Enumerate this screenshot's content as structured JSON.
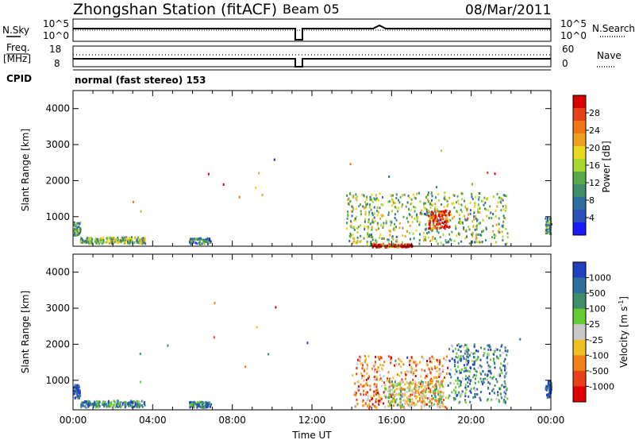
{
  "header": {
    "station_title": "Zhongshan Station (fitACF)",
    "beam": "Beam 05",
    "date": "08/Mar/2011"
  },
  "status_panels": {
    "nsky_label": "N.Sky",
    "nsearch_label": "N.Search",
    "freq_label": "Freq.",
    "freq_unit": "[MHz]",
    "nave_label": "Nave",
    "cpid_label": "CPID",
    "cpid_text": "normal (fast stereo) 153",
    "noise_left_top": "10^5",
    "noise_left_bottom": "10^0",
    "noise_right_top": "10^5",
    "noise_right_bottom": "10^0",
    "freq_top": "18",
    "freq_bottom": "8",
    "nave_top": "60",
    "nave_bottom": "0"
  },
  "chart_data": [
    {
      "type": "heatmap",
      "panel": "power",
      "ylabel": "Slant Range [km]",
      "colorbar_label": "Power [dB]",
      "ylim": [
        180,
        4500
      ],
      "yticks": [
        1000,
        2000,
        3000,
        4000
      ],
      "xlim": [
        0,
        24
      ],
      "colorbar_ticks": [
        "4",
        "8",
        "12",
        "16",
        "20",
        "24",
        "28"
      ],
      "colorscale": [
        "#1a1aff",
        "#2a52b8",
        "#2f6fa0",
        "#3f8e6a",
        "#5aa84a",
        "#a8d830",
        "#e8d820",
        "#f0a020",
        "#f07818",
        "#e84018",
        "#d80000"
      ],
      "patches": [
        {
          "t0": 0.0,
          "t1": 0.35,
          "r0": 500,
          "r1": 900,
          "level": 0.35
        },
        {
          "t0": 0.35,
          "t1": 3.6,
          "r0": 280,
          "r1": 460,
          "level": 0.45
        },
        {
          "t0": 5.8,
          "t1": 6.9,
          "r0": 270,
          "r1": 430,
          "level": 0.3
        },
        {
          "t0": 13.7,
          "t1": 21.8,
          "r0": 250,
          "r1": 1700,
          "level": 0.45
        },
        {
          "t0": 17.8,
          "t1": 18.9,
          "r0": 700,
          "r1": 1200,
          "level": 0.9
        },
        {
          "t0": 15.0,
          "t1": 17.0,
          "r0": 180,
          "r1": 260,
          "level": 0.85
        },
        {
          "t0": 23.7,
          "t1": 24.0,
          "r0": 550,
          "r1": 1000,
          "level": 0.35
        }
      ]
    },
    {
      "type": "heatmap",
      "panel": "velocity",
      "ylabel": "Slant Range [km]",
      "colorbar_label": "Velocity [m s",
      "colorbar_label_sup": "-1",
      "colorbar_label_end": "]",
      "ylim": [
        180,
        4500
      ],
      "yticks": [
        1000,
        2000,
        3000,
        4000
      ],
      "xlim": [
        0,
        24
      ],
      "xticks": [
        "00:00",
        "04:00",
        "08:00",
        "12:00",
        "16:00",
        "20:00",
        "00:00"
      ],
      "xlabel": "Time UT",
      "colorbar_ticks": [
        "1000",
        "500",
        "100",
        "25",
        "-25",
        "-100",
        "-500",
        "-1000"
      ],
      "colorscale": [
        "#2040c0",
        "#2f6fa0",
        "#3f8e6a",
        "#66cc33",
        "#c8c8c8",
        "#f0c020",
        "#f08018",
        "#e84018",
        "#e00000"
      ],
      "patches": [
        {
          "t0": 0.0,
          "t1": 0.35,
          "r0": 520,
          "r1": 900,
          "level": 0.1
        },
        {
          "t0": 0.35,
          "t1": 3.6,
          "r0": 280,
          "r1": 460,
          "level": 0.25
        },
        {
          "t0": 5.8,
          "t1": 6.9,
          "r0": 270,
          "r1": 430,
          "level": 0.2
        },
        {
          "t0": 14.0,
          "t1": 18.8,
          "r0": 250,
          "r1": 1700,
          "level": 0.7
        },
        {
          "t0": 15.6,
          "t1": 18.6,
          "r0": 300,
          "r1": 1000,
          "level": 0.5
        },
        {
          "t0": 18.8,
          "t1": 21.8,
          "r0": 400,
          "r1": 2050,
          "level": 0.25
        },
        {
          "t0": 23.7,
          "t1": 24.0,
          "r0": 550,
          "r1": 1000,
          "level": 0.1
        }
      ]
    }
  ]
}
